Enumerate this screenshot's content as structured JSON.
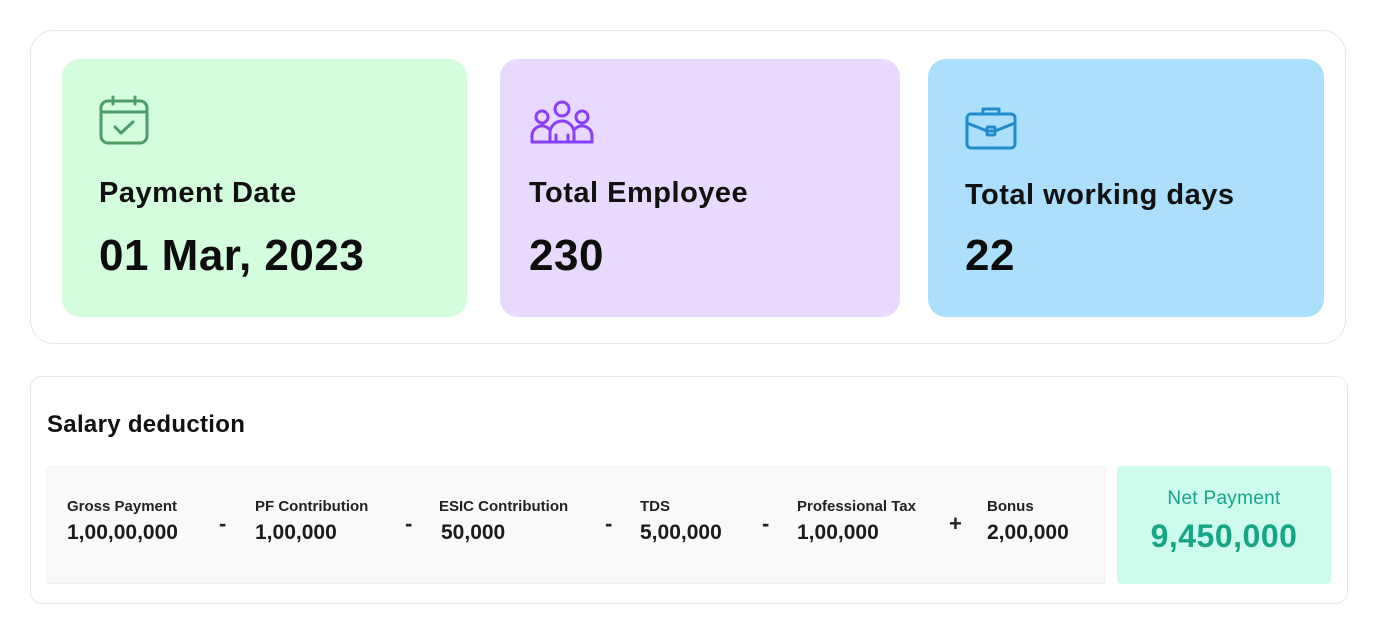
{
  "summary": {
    "payment": {
      "label": "Payment Date",
      "value": "01 Mar, 2023",
      "icon": "calendar-check-icon",
      "color": "#d3fddd",
      "icon_color": "#4f9d66"
    },
    "employee": {
      "label": "Total Employee",
      "value": "230",
      "icon": "users-group-icon",
      "color": "#e8dafe",
      "icon_color": "#8a3ffc"
    },
    "days": {
      "label": "Total working days",
      "value": "22",
      "icon": "briefcase-icon",
      "color": "#abdffc",
      "icon_color": "#1f8ccc"
    }
  },
  "deduction": {
    "title": "Salary deduction",
    "items": [
      {
        "label": "Gross Payment",
        "value": "1,00,00,000"
      },
      {
        "label": "PF Contribution",
        "value": "1,00,000"
      },
      {
        "label": "ESIC Contribution",
        "value": "50,000"
      },
      {
        "label": "TDS",
        "value": "5,00,000"
      },
      {
        "label": "Professional Tax",
        "value": "1,00,000"
      },
      {
        "label": "Bonus",
        "value": "2,00,000"
      }
    ],
    "operators": [
      "-",
      "-",
      "-",
      "-",
      "+"
    ],
    "net": {
      "label": "Net Payment",
      "value": "9,450,000",
      "color": "#17a585"
    }
  }
}
